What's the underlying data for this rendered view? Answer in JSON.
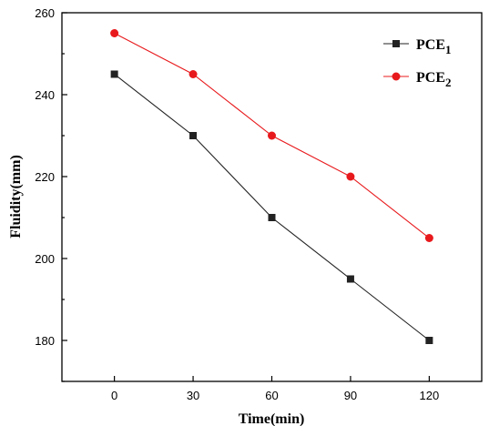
{
  "chart_data": {
    "type": "line",
    "x": [
      0,
      30,
      60,
      90,
      120
    ],
    "series": [
      {
        "name": "PCE",
        "subscript": "1",
        "color": "#222222",
        "marker": "square",
        "values": [
          245,
          230,
          210,
          195,
          180
        ]
      },
      {
        "name": "PCE",
        "subscript": "2",
        "color": "#e8191c",
        "marker": "circle",
        "values": [
          255,
          245,
          230,
          220,
          205
        ]
      }
    ],
    "xlabel": "Time(min)",
    "ylabel": "Fluidity(mm)",
    "xlim": [
      -20,
      140
    ],
    "ylim": [
      170,
      260
    ],
    "xticks": [
      0,
      30,
      60,
      90,
      120
    ],
    "yticks": [
      180,
      200,
      220,
      240,
      260
    ],
    "grid": false,
    "legend": "top-right"
  }
}
